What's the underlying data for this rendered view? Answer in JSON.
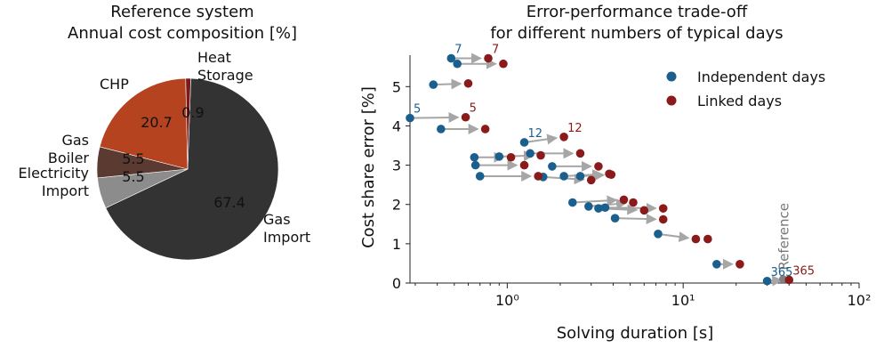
{
  "chart_data": [
    {
      "type": "pie",
      "title": "Reference system\nAnnual cost composition [%]",
      "slices": [
        {
          "label": "Gas\nImport",
          "value": 67.4,
          "value_label": "67.4",
          "color": "#333333"
        },
        {
          "label": "Electricity\nImport",
          "value": 5.5,
          "value_label": "5.5",
          "color": "#8c8c8c"
        },
        {
          "label": "Gas\nBoiler",
          "value": 5.5,
          "value_label": "5.5",
          "color": "#5b3a32"
        },
        {
          "label": "CHP",
          "value": 20.7,
          "value_label": "20.7",
          "color": "#b5431f"
        },
        {
          "label": "Heat\nStorage",
          "value": 0.9,
          "value_label": "0.9",
          "color": "#7a1a1a"
        }
      ]
    },
    {
      "type": "scatter",
      "title": "Error-performance trade-off\nfor different numbers of typical days",
      "xlabel": "Solving duration [s]",
      "ylabel": "Cost share error [%]",
      "xscale": "log",
      "xlim": [
        0.28,
        100
      ],
      "ylim": [
        0,
        5.8
      ],
      "x_ticks": [
        {
          "value": 1,
          "label": "10⁰"
        },
        {
          "value": 10,
          "label": "10¹"
        },
        {
          "value": 100,
          "label": "10²"
        }
      ],
      "y_ticks": [
        0,
        1,
        2,
        3,
        4,
        5
      ],
      "legend": {
        "position": "top-right",
        "entries": [
          "Independent days",
          "Linked days"
        ]
      },
      "colors": {
        "independent": "#1a5f8e",
        "linked": "#8b1a1a",
        "arrow": "#a6a6a6",
        "reference": "#808080"
      },
      "pairs": [
        {
          "x1": 0.48,
          "y1": 5.72,
          "x2": 0.78,
          "y2": 5.72,
          "label": "7"
        },
        {
          "x1": 0.52,
          "y1": 5.58,
          "x2": 0.95,
          "y2": 5.58
        },
        {
          "x1": 0.38,
          "y1": 5.05,
          "x2": 0.6,
          "y2": 5.08
        },
        {
          "x1": 0.28,
          "y1": 4.2,
          "x2": 0.58,
          "y2": 4.22,
          "label": "5"
        },
        {
          "x1": 0.42,
          "y1": 3.92,
          "x2": 0.75,
          "y2": 3.92
        },
        {
          "x1": 1.25,
          "y1": 3.58,
          "x2": 2.1,
          "y2": 3.72,
          "label": "12"
        },
        {
          "x1": 0.9,
          "y1": 3.22,
          "x2": 1.55,
          "y2": 3.25
        },
        {
          "x1": 0.65,
          "y1": 3.2,
          "x2": 1.05,
          "y2": 3.2
        },
        {
          "x1": 1.35,
          "y1": 3.3,
          "x2": 2.6,
          "y2": 3.3
        },
        {
          "x1": 1.8,
          "y1": 2.97,
          "x2": 3.3,
          "y2": 2.97
        },
        {
          "x1": 0.66,
          "y1": 3.0,
          "x2": 1.25,
          "y2": 3.0
        },
        {
          "x1": 1.6,
          "y1": 2.7,
          "x2": 3.0,
          "y2": 2.62
        },
        {
          "x1": 0.7,
          "y1": 2.72,
          "x2": 1.5,
          "y2": 2.72
        },
        {
          "x1": 2.1,
          "y1": 2.72,
          "x2": 3.8,
          "y2": 2.78
        },
        {
          "x1": 2.6,
          "y1": 2.72,
          "x2": 3.9,
          "y2": 2.76
        },
        {
          "x1": 2.35,
          "y1": 2.05,
          "x2": 4.6,
          "y2": 2.12
        },
        {
          "x1": 2.9,
          "y1": 1.95,
          "x2": 5.2,
          "y2": 2.05
        },
        {
          "x1": 3.3,
          "y1": 1.9,
          "x2": 6.0,
          "y2": 1.85
        },
        {
          "x1": 3.6,
          "y1": 1.92,
          "x2": 7.7,
          "y2": 1.9
        },
        {
          "x1": 4.1,
          "y1": 1.65,
          "x2": 7.7,
          "y2": 1.62
        },
        {
          "x1": 7.2,
          "y1": 1.25,
          "x2": 11.8,
          "y2": 1.12
        },
        {
          "x1": 15.5,
          "y1": 0.48,
          "x2": 21.0,
          "y2": 0.48
        },
        {
          "x1": 30.0,
          "y1": 0.05,
          "x2": 40.0,
          "y2": 0.08,
          "label": "365"
        }
      ],
      "extra_linked": [
        {
          "x": 13.8,
          "y": 1.12
        }
      ],
      "reference": {
        "x": 37.0,
        "y": 0.1,
        "label": "Reference"
      }
    }
  ]
}
